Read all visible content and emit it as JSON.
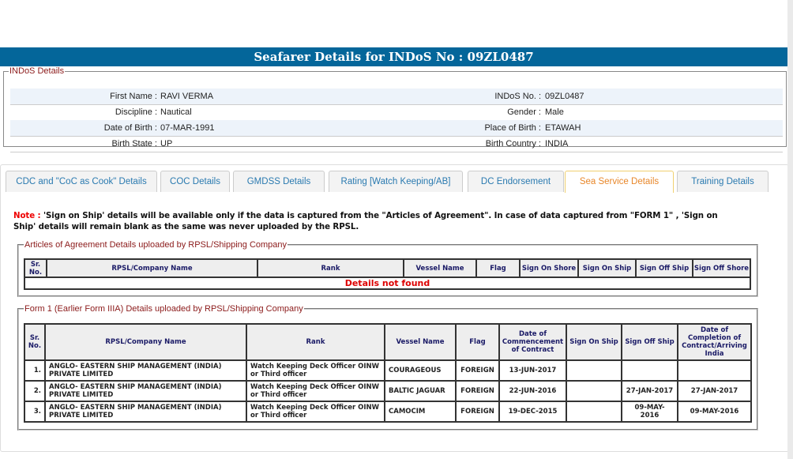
{
  "header": {
    "title": "Seafarer Details for INDoS No : 09ZL0487"
  },
  "indos": {
    "legend": "INDoS Details",
    "rows": [
      {
        "l1": "First Name :",
        "v1": "RAVI VERMA",
        "l2": "INDoS No. :",
        "v2": "09ZL0487"
      },
      {
        "l1": "Discipline :",
        "v1": "Nautical",
        "l2": "Gender :",
        "v2": "Male"
      },
      {
        "l1": "Date of Birth :",
        "v1": "07-MAR-1991",
        "l2": "Place of Birth :",
        "v2": "ETAWAH"
      },
      {
        "l1": "Birth State :",
        "v1": "UP",
        "l2": "Birth Country :",
        "v2": "INDIA"
      }
    ]
  },
  "tabs": [
    {
      "label": "CDC and \"CoC as Cook\" Details"
    },
    {
      "label": "COC Details"
    },
    {
      "label": "GMDSS Details"
    },
    {
      "label": "Rating [Watch Keeping/AB]"
    },
    {
      "label": "DC Endorsement"
    },
    {
      "label": "Sea Service Details",
      "active": true
    },
    {
      "label": "Training Details"
    }
  ],
  "note": {
    "prefix": "Note :",
    "text": " 'Sign on Ship' details will be available only if the data is captured from the \"Articles of Agreement\". In case of data captured from \"FORM 1\" , 'Sign on Ship' details will remain blank as the same was never uploaded by the RPSL."
  },
  "articles": {
    "legend": "Articles of Agreement Details uploaded by RPSL/Shipping Company",
    "headers": [
      "Sr. No.",
      "RPSL/Company Name",
      "Rank",
      "Vessel Name",
      "Flag",
      "Sign On Shore",
      "Sign On Ship",
      "Sign Off Ship",
      "Sign Off Shore"
    ],
    "empty": "Details not found"
  },
  "form1": {
    "legend": "Form 1 (Earlier Form IIIA) Details uploaded by RPSL/Shipping Company",
    "headers": [
      "Sr. No.",
      "RPSL/Company Name",
      "Rank",
      "Vessel Name",
      "Flag",
      "Date of Commencement of Contract",
      "Sign On Ship",
      "Sign Off Ship",
      "Date of Completion of Contract/Arriving India"
    ],
    "rows": [
      [
        "1.",
        "ANGLO- EASTERN SHIP MANAGEMENT (INDIA) PRIVATE LIMITED",
        "Watch Keeping Deck Officer OINW or Third officer",
        "COURAGEOUS",
        "FOREIGN",
        "13-JUN-2017",
        "",
        "",
        ""
      ],
      [
        "2.",
        "ANGLO- EASTERN SHIP MANAGEMENT (INDIA) PRIVATE LIMITED",
        "Watch Keeping Deck Officer OINW or Third officer",
        "BALTIC JAGUAR",
        "FOREIGN",
        "22-JUN-2016",
        "",
        "27-JAN-2017",
        "27-JAN-2017"
      ],
      [
        "3.",
        "ANGLO- EASTERN SHIP MANAGEMENT (INDIA) PRIVATE LIMITED",
        "Watch Keeping Deck Officer OINW or Third officer",
        "CAMOCIM",
        "FOREIGN",
        "19-DEC-2015",
        "",
        "09-MAY-2016",
        "09-MAY-2016"
      ]
    ]
  },
  "colors": {
    "header": "#04669a",
    "legend": "#8b1a1a",
    "active_tab": "#e8872a",
    "tab": "#2a7ab0",
    "note": "#e00000"
  }
}
